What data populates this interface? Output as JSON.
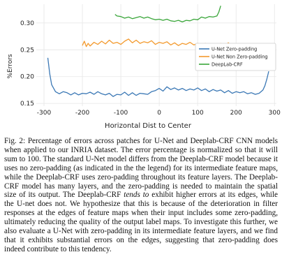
{
  "figure": {
    "caption_parts": [
      "Fig. 2: Percentage of errors across patches for U-Net and Deeplab-CRF CNN models when applied to our INRIA dataset. The error percentage is normalized so that it will sum to 100. The standard U-Net model differs from the Deeplab-CRF model because it uses no zero-padding (as indicated in the the legend) for its intermediate feature maps, while the Deeplab-CRF uses zero-padding throughout its feature layers. The Deeplab-CRF model has many layers, and the zero-padding is needed to maintain the spatial size of its output. The Deeplab-CRF ",
      "tends to",
      " exhibit higher errors at its edges, while the U-net does not. We hypothesize that this is because of the deterioration in filter responses at the edges of feature maps when their input includes some zero-padding, ultimately reducing the quality of the output label maps. To investigate this further, we also evaluate a U-Net with zero-padding in its intermediate feature layers, and we find that it exhibits substantial errors on the edges, suggesting that zero-padding does indeed contribute to this tendency."
    ]
  },
  "chart_data": {
    "type": "line",
    "title": "",
    "xlabel": "Horizontal Dist to Center",
    "ylabel": "%Errors",
    "xlim": [
      -320,
      305
    ],
    "ylim": [
      0.145,
      0.335
    ],
    "xticks": [
      -300,
      -200,
      -100,
      0,
      100,
      200,
      300
    ],
    "xtick_labels": [
      "-300",
      "-200",
      "-100",
      "0",
      "100",
      "200",
      "300"
    ],
    "yticks": [
      0.15,
      0.2,
      0.25,
      0.3
    ],
    "ytick_labels": [
      "0.15",
      "0.20",
      "0.25",
      "0.30"
    ],
    "grid": true,
    "legend_position": "center-right",
    "series": [
      {
        "name": "U-Net Zero-padding",
        "color": "#3b78b5",
        "x": [
          -290,
          -285,
          -280,
          -270,
          -260,
          -250,
          -240,
          -230,
          -220,
          -210,
          -200,
          -190,
          -180,
          -170,
          -160,
          -150,
          -140,
          -130,
          -120,
          -110,
          -100,
          -90,
          -80,
          -70,
          -60,
          -50,
          -40,
          -30,
          -20,
          -10,
          0,
          10,
          20,
          30,
          40,
          50,
          60,
          70,
          80,
          90,
          100,
          110,
          120,
          130,
          140,
          150,
          160,
          170,
          180,
          190,
          200,
          210,
          220,
          230,
          240,
          250,
          260,
          270,
          275,
          280,
          285
        ],
        "values": [
          0.235,
          0.205,
          0.185,
          0.172,
          0.168,
          0.172,
          0.17,
          0.166,
          0.17,
          0.166,
          0.169,
          0.168,
          0.171,
          0.167,
          0.172,
          0.168,
          0.166,
          0.169,
          0.163,
          0.167,
          0.166,
          0.171,
          0.165,
          0.17,
          0.165,
          0.169,
          0.168,
          0.167,
          0.172,
          0.174,
          0.178,
          0.173,
          0.181,
          0.176,
          0.179,
          0.175,
          0.178,
          0.174,
          0.177,
          0.175,
          0.179,
          0.174,
          0.177,
          0.172,
          0.176,
          0.173,
          0.175,
          0.17,
          0.174,
          0.169,
          0.172,
          0.17,
          0.172,
          0.168,
          0.17,
          0.167,
          0.169,
          0.175,
          0.183,
          0.195,
          0.21
        ]
      },
      {
        "name": "U-Net Non Zero-padding",
        "color": "#f39a2e",
        "x": [
          -200,
          -195,
          -190,
          -185,
          -180,
          -170,
          -160,
          -150,
          -140,
          -130,
          -120,
          -110,
          -100,
          -90,
          -80,
          -70,
          -60,
          -50,
          -40,
          -30,
          -20,
          -10,
          0,
          10,
          20,
          30,
          40,
          50,
          60,
          70,
          80,
          90,
          100,
          110,
          120,
          130,
          140,
          150,
          160,
          170,
          180,
          190,
          200
        ],
        "values": [
          0.258,
          0.266,
          0.256,
          0.262,
          0.257,
          0.264,
          0.26,
          0.266,
          0.261,
          0.268,
          0.262,
          0.264,
          0.26,
          0.266,
          0.27,
          0.263,
          0.268,
          0.262,
          0.265,
          0.263,
          0.267,
          0.26,
          0.264,
          0.262,
          0.265,
          0.259,
          0.263,
          0.258,
          0.262,
          0.26,
          0.264,
          0.259,
          0.262,
          0.258,
          0.262,
          0.257,
          0.261,
          0.256,
          0.262,
          0.258,
          0.263,
          0.256,
          0.26
        ]
      },
      {
        "name": "DeepLab-CRF",
        "color": "#3aa63a",
        "x": [
          -115,
          -110,
          -100,
          -90,
          -80,
          -70,
          -60,
          -50,
          -40,
          -30,
          -20,
          -10,
          0,
          10,
          20,
          30,
          40,
          50,
          60,
          70,
          80,
          90,
          100,
          110,
          120,
          130,
          140,
          150,
          155,
          160
        ],
        "values": [
          0.316,
          0.313,
          0.312,
          0.309,
          0.311,
          0.308,
          0.31,
          0.312,
          0.309,
          0.311,
          0.308,
          0.306,
          0.307,
          0.305,
          0.307,
          0.304,
          0.303,
          0.305,
          0.302,
          0.305,
          0.304,
          0.307,
          0.306,
          0.311,
          0.309,
          0.312,
          0.311,
          0.313,
          0.32,
          0.332
        ]
      }
    ]
  }
}
